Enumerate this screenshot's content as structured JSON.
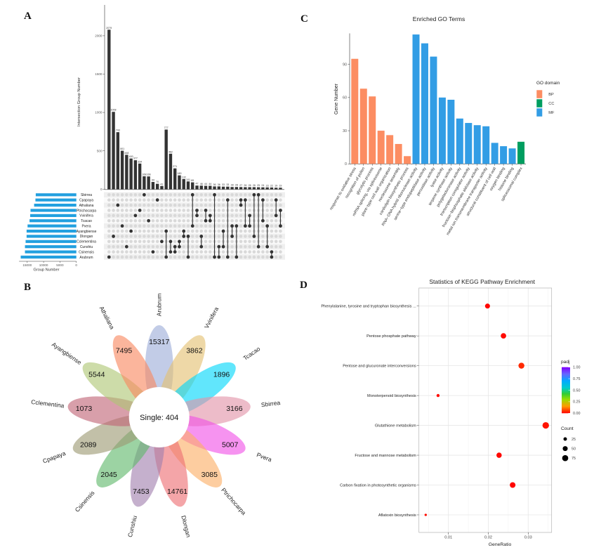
{
  "figure": {
    "panel_labels": {
      "A": "A",
      "B": "B",
      "C": "C",
      "D": "D"
    }
  },
  "chart_data": [
    {
      "panel": "A",
      "type": "bar",
      "subtype": "upset",
      "title": "",
      "ylabel": "Intersection Group Number",
      "ylim": [
        0,
        2400
      ],
      "yticks": [
        0,
        500,
        1000,
        1500,
        2000
      ],
      "set_size_xlabel": "Group Number",
      "set_size_ticks": [
        15000,
        10000,
        5000,
        0
      ],
      "sets": [
        "Sbirrea",
        "Cpapaya",
        "Athaliana",
        "Ptrichocarpa",
        "Vvinifera",
        "Tcacao",
        "Pvera",
        "Ayangbiense",
        "Dlongan",
        "Cclementina",
        "Cunshiu",
        "Csinensis",
        "Arubrum"
      ],
      "set_sizes": [
        12400,
        12500,
        12900,
        14000,
        14100,
        14300,
        14900,
        15200,
        15200,
        15500,
        15700,
        15700,
        17000
      ],
      "intersections": [
        {
          "sets": [
            "Arubrum"
          ],
          "value": 2079
        },
        {
          "sets": [
            "Dlongan"
          ],
          "value": 1008
        },
        {
          "sets": [
            "Athaliana"
          ],
          "value": 743
        },
        {
          "sets": [
            "Pvera"
          ],
          "value": 501
        },
        {
          "sets": [
            "Cunshiu"
          ],
          "value": 448
        },
        {
          "sets": [
            "Ayangbiense"
          ],
          "value": 400
        },
        {
          "sets": [
            "Vvinifera"
          ],
          "value": 377
        },
        {
          "sets": [
            "Ptrichocarpa"
          ],
          "value": 334
        },
        {
          "sets": [
            "Sbirrea"
          ],
          "value": 168
        },
        {
          "sets": [
            "Tcacao"
          ],
          "value": 166
        },
        {
          "sets": [
            "Csinensis"
          ],
          "value": 94
        },
        {
          "sets": [
            "Cpapaya"
          ],
          "value": 70
        },
        {
          "sets": [
            "Cclementina"
          ],
          "value": 41
        },
        {
          "sets": [
            "Ayangbiense",
            "Arubrum"
          ],
          "value": 777
        },
        {
          "sets": [
            "Cclementina",
            "Csinensis"
          ],
          "value": 462
        },
        {
          "sets": [
            "Cunshiu",
            "Csinensis"
          ],
          "value": 271
        },
        {
          "sets": [
            "Cclementina",
            "Cunshiu"
          ],
          "value": 180
        },
        {
          "sets": [
            "Ayangbiense",
            "Dlongan"
          ],
          "value": 132
        },
        {
          "sets": [
            "Dlongan",
            "Arubrum"
          ],
          "value": 101
        },
        {
          "sets": [
            "Sbirrea",
            "Pvera"
          ],
          "value": 89
        },
        {
          "sets": [
            "Ptrichocarpa",
            "Vvinifera"
          ],
          "value": 47
        },
        {
          "sets": [
            "Dlongan",
            "Cunshiu"
          ],
          "value": 46
        },
        {
          "sets": [
            "Ptrichocarpa",
            "Tcacao"
          ],
          "value": 44
        },
        {
          "sets": [
            "Vvinifera",
            "Tcacao"
          ],
          "value": 44
        },
        {
          "sets": [
            "Sbirrea",
            "Arubrum"
          ],
          "value": 36
        },
        {
          "sets": [
            "Cunshiu",
            "Arubrum"
          ],
          "value": 36
        },
        {
          "sets": [
            "Ayangbiense",
            "Cunshiu"
          ],
          "value": 33
        },
        {
          "sets": [
            "Cpapaya",
            "Arubrum"
          ],
          "value": 33
        },
        {
          "sets": [
            "Pvera",
            "Dlongan"
          ],
          "value": 28
        },
        {
          "sets": [
            "Pvera",
            "Arubrum"
          ],
          "value": 28
        },
        {
          "sets": [
            "Cpapaya",
            "Athaliana"
          ],
          "value": 27
        },
        {
          "sets": [
            "Cpapaya",
            "Pvera"
          ],
          "value": 26
        },
        {
          "sets": [
            "Vvinifera",
            "Pvera"
          ],
          "value": 26
        },
        {
          "sets": [
            "Sbirrea",
            "Dlongan"
          ],
          "value": 26
        },
        {
          "sets": [
            "Sbirrea",
            "Cunshiu"
          ],
          "value": 25
        },
        {
          "sets": [
            "Cpapaya",
            "Tcacao"
          ],
          "value": 24
        },
        {
          "sets": [
            "Pvera",
            "Cunshiu"
          ],
          "value": 23
        },
        {
          "sets": [
            "Csinensis",
            "Arubrum"
          ],
          "value": 22
        },
        {
          "sets": [
            "Cpapaya",
            "Vvinifera"
          ],
          "value": 19
        },
        {
          "sets": [
            "Ptrichocarpa",
            "Pvera"
          ],
          "value": 19
        }
      ],
      "colors": {
        "bar": "#333333",
        "set_bar": "#22a0df",
        "dot_active": "#333333",
        "dot_inactive": "#d9d9d9"
      }
    },
    {
      "panel": "B",
      "type": "venn",
      "subtype": "flower",
      "center_label": "Single: 404",
      "core_count": 404,
      "petals": [
        {
          "name": "Arubrum",
          "value": 15317,
          "color": "#9dadd8"
        },
        {
          "name": "Vvinifera",
          "value": 3862,
          "color": "#e3c071"
        },
        {
          "name": "Tcacao",
          "value": 1896,
          "color": "#00d7fa"
        },
        {
          "name": "Sbirrea",
          "value": 3166,
          "color": "#e293a8"
        },
        {
          "name": "Pvera",
          "value": 5007,
          "color": "#f150e6"
        },
        {
          "name": "Ptrichocarpa",
          "value": 3085,
          "color": "#fbae65"
        },
        {
          "name": "Dlongan",
          "value": 14761,
          "color": "#ee6e72"
        },
        {
          "name": "Cunshiu",
          "value": 7453,
          "color": "#a27fae"
        },
        {
          "name": "Csinensis",
          "value": 2045,
          "color": "#5fb86a"
        },
        {
          "name": "Cpapaya",
          "value": 2089,
          "color": "#9c9a73"
        },
        {
          "name": "Cclementina",
          "value": 1073,
          "color": "#c06476"
        },
        {
          "name": "Ayangbiense",
          "value": 5544,
          "color": "#afc774"
        },
        {
          "name": "Athaliana",
          "value": 7495,
          "color": "#f8875f"
        }
      ]
    },
    {
      "panel": "C",
      "type": "bar",
      "title": "Enriched GO Terms",
      "xlabel": "",
      "ylabel": "Gene Number",
      "ylim": [
        0,
        118
      ],
      "yticks": [
        0,
        30,
        60,
        90
      ],
      "legend": {
        "title": "GO domain",
        "position": "right",
        "entries": [
          {
            "label": "BP",
            "color": "#fc8d62"
          },
          {
            "label": "CC",
            "color": "#009e60"
          },
          {
            "label": "MF",
            "color": "#329de5"
          }
        ]
      },
      "categories": [
        "response to oxidative stress",
        "recognition of pollen",
        "glycolytic process",
        "mRNA splicing, via spliceosome",
        "plant−type cell wall organization",
        "nucleosome assembly",
        "cardiolipin biosynthetic process",
        "RNA−DNA hybrid ribonuclease activity",
        "serine−type endopeptidase activity",
        "peroxidase activity",
        "lyase activity",
        "terpene synthase activity",
        "polygalacturonase activity",
        "transcription coregulator activity",
        "fructose−bisphosphate aldolase activity",
        "metal ion transmembrane transporter activity",
        "structural constituent of cell wall",
        "oxygen binding",
        "histone binding",
        "spliceosomal complex"
      ],
      "values": [
        95,
        68,
        61,
        30,
        26,
        18,
        7,
        117,
        109,
        97,
        60,
        58,
        41,
        37,
        35,
        34,
        19,
        16,
        14,
        20
      ],
      "domains": [
        "BP",
        "BP",
        "BP",
        "BP",
        "BP",
        "BP",
        "BP",
        "MF",
        "MF",
        "MF",
        "MF",
        "MF",
        "MF",
        "MF",
        "MF",
        "MF",
        "MF",
        "MF",
        "MF",
        "CC"
      ]
    },
    {
      "panel": "D",
      "type": "scatter",
      "title": "Statistics of KEGG Pathway Enrichment",
      "xlabel": "GeneRatio",
      "ylabel": "",
      "xlim": [
        0.0026,
        0.0359
      ],
      "xticks": [
        0.01,
        0.02,
        0.03
      ],
      "grid": true,
      "categories": [
        "Phenylalanine, tyrosine and tryptophan biosynthesis ...",
        "Pentose phosphate pathway",
        "Pentose and glucuronate interconversions",
        "Monoterpenoid biosynthesis",
        "Glutathione metabolism",
        "Fructose and mannose metabolism",
        "Carbon fixation in photosynthetic organisms",
        "Aflatoxin biosynthesis"
      ],
      "gene_ratio": [
        0.0198,
        0.0238,
        0.0283,
        0.0074,
        0.0344,
        0.0227,
        0.0261,
        0.0043
      ],
      "count": [
        50,
        60,
        71,
        19,
        86,
        57,
        65,
        11
      ],
      "padj": [
        0.005,
        0.01,
        0.04,
        0.01,
        0.02,
        0.008,
        0.005,
        0.01
      ],
      "legend_padj": {
        "title": "padj",
        "ticks": [
          1.0,
          0.75,
          0.5,
          0.25,
          0.0
        ],
        "tick_labels": [
          "1.00",
          "0.75",
          "0.50",
          "0.25",
          "0.00"
        ],
        "position": "right"
      },
      "legend_count": {
        "title": "Count",
        "values": [
          25,
          50,
          75
        ],
        "position": "right"
      }
    }
  ]
}
